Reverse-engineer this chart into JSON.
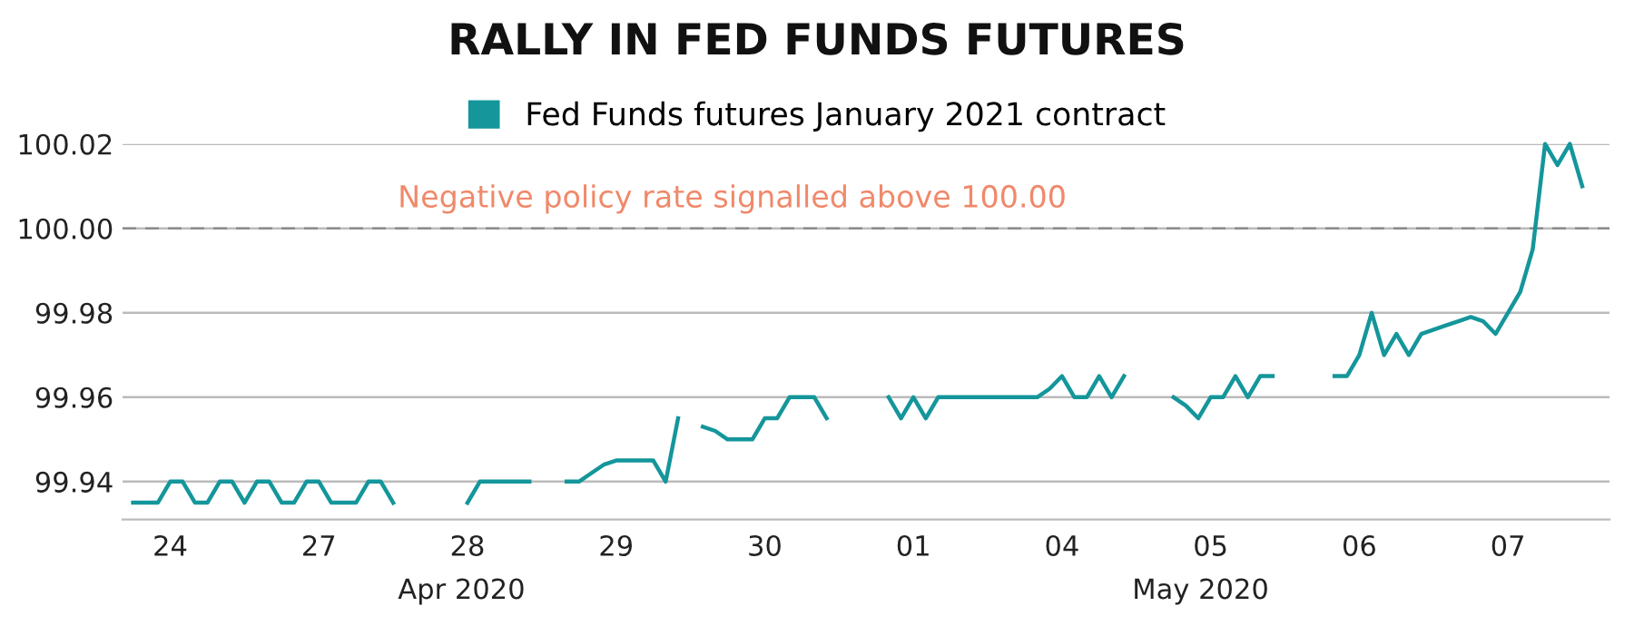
{
  "chart_data": {
    "type": "line",
    "title": "RALLY IN FED FUNDS FUTURES",
    "legend": "top",
    "grid": "y",
    "line_style": "solid",
    "marker": "none",
    "categories": [
      null,
      null,
      null,
      "24",
      null,
      null,
      null,
      null,
      null,
      null,
      null,
      null,
      null,
      null,
      null,
      "27",
      null,
      null,
      null,
      null,
      null,
      null,
      null,
      null,
      null,
      null,
      null,
      "28",
      null,
      null,
      null,
      null,
      null,
      null,
      null,
      null,
      null,
      null,
      null,
      "29",
      null,
      null,
      null,
      null,
      null,
      null,
      null,
      null,
      null,
      null,
      null,
      "30",
      null,
      null,
      null,
      null,
      null,
      null,
      null,
      null,
      null,
      null,
      null,
      "01",
      null,
      null,
      null,
      null,
      null,
      null,
      null,
      null,
      null,
      null,
      null,
      "04",
      null,
      null,
      null,
      null,
      null,
      null,
      null,
      null,
      null,
      null,
      null,
      "05",
      null,
      null,
      null,
      null,
      null,
      null,
      null,
      null,
      null,
      null,
      null,
      "06",
      null,
      null,
      null,
      null,
      null,
      null,
      null,
      null,
      null,
      null,
      null,
      "07",
      null,
      null,
      null,
      null,
      null,
      null
    ],
    "ylim": [
      99.931,
      100.02
    ],
    "yticks": [
      99.94,
      99.96,
      99.98,
      {
        "value": 100.0,
        "label": "100.00"
      },
      100.02
    ],
    "ref_lines": [
      {
        "axis": "y",
        "value": 100.0,
        "label": "Negative policy rate signalled above 100.00",
        "color": "#8c8c8c",
        "line_style": "dashed"
      }
    ],
    "annotations": [
      "Apr 2020",
      "May 2020"
    ],
    "series": [
      {
        "name": "Fed Funds futures January 2021 contract",
        "color": "#14969b",
        "values": [
          99.935,
          99.935,
          99.935,
          99.94,
          99.94,
          99.935,
          99.935,
          99.94,
          99.94,
          99.935,
          99.94,
          99.94,
          99.935,
          99.935,
          99.94,
          99.94,
          99.935,
          99.935,
          99.935,
          99.94,
          99.94,
          99.935,
          null,
          null,
          null,
          null,
          null,
          99.935,
          99.94,
          99.94,
          99.94,
          99.94,
          99.94,
          null,
          null,
          99.94,
          99.94,
          99.942,
          99.944,
          99.945,
          99.945,
          99.945,
          99.945,
          99.94,
          99.955,
          null,
          99.953,
          99.952,
          99.95,
          99.95,
          99.95,
          99.955,
          99.955,
          99.96,
          99.96,
          99.96,
          99.955,
          null,
          null,
          null,
          null,
          99.96,
          99.955,
          99.96,
          99.955,
          99.96,
          99.96,
          99.96,
          99.96,
          99.96,
          99.96,
          99.96,
          99.96,
          99.96,
          99.962,
          99.965,
          99.96,
          99.96,
          99.965,
          99.96,
          99.965,
          null,
          null,
          null,
          99.96,
          99.958,
          99.955,
          99.96,
          99.96,
          99.965,
          99.96,
          99.965,
          99.965,
          null,
          null,
          null,
          null,
          99.965,
          99.965,
          99.97,
          99.98,
          99.97,
          99.975,
          99.97,
          99.975,
          99.976,
          99.977,
          99.978,
          99.979,
          99.978,
          99.975,
          99.98,
          99.985,
          99.995,
          100.02,
          100.015,
          100.02,
          100.01
        ]
      }
    ]
  }
}
